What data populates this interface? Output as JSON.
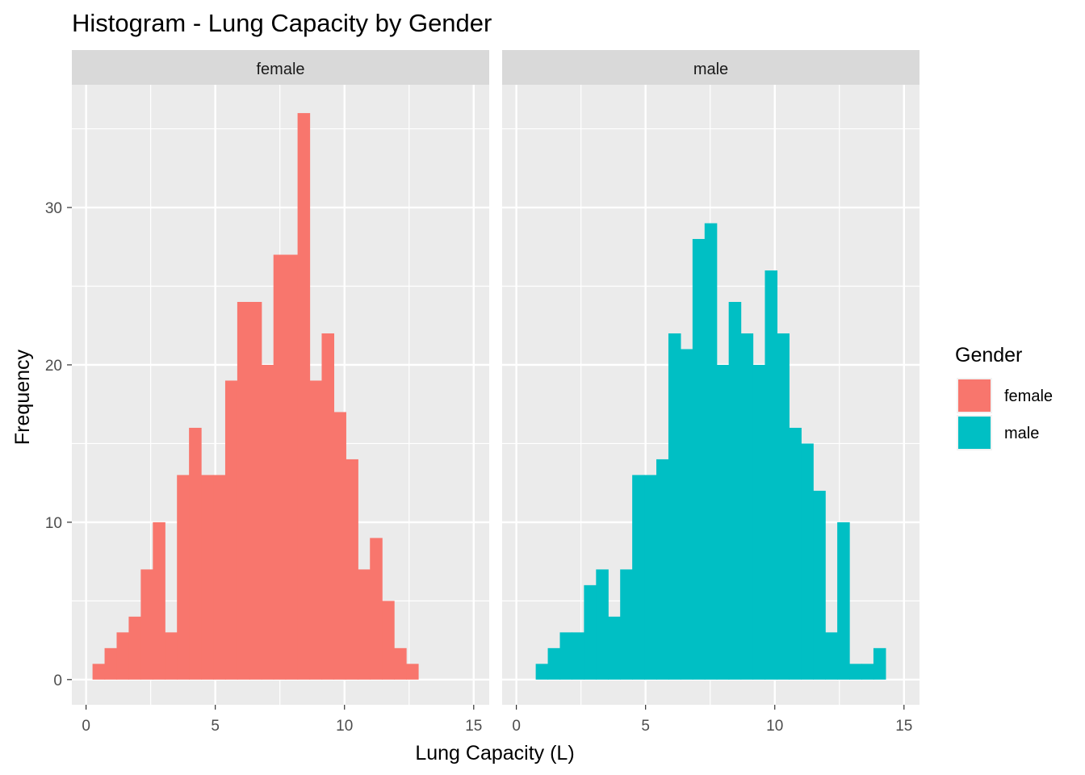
{
  "chart_data": {
    "type": "bar",
    "title": "Histogram - Lung Capacity by Gender",
    "xlabel": "Lung Capacity (L)",
    "ylabel": "Frequency",
    "xlim": [
      -0.55,
      15.6
    ],
    "ylim": [
      -1.6,
      37.8
    ],
    "x_ticks": [
      0,
      5,
      10,
      15
    ],
    "y_ticks": [
      0,
      10,
      20,
      30
    ],
    "grid": true,
    "bin_width": 0.4667,
    "legend": {
      "title": "Gender",
      "position": "right",
      "entries": [
        {
          "label": "female",
          "color": "#F8766D"
        },
        {
          "label": "male",
          "color": "#00BFC4"
        }
      ]
    },
    "panels": [
      {
        "label": "female",
        "color": "#F8766D",
        "bin_start": 0.25,
        "counts": [
          1,
          2,
          3,
          4,
          7,
          10,
          3,
          13,
          16,
          13,
          13,
          19,
          24,
          24,
          20,
          27,
          27,
          36,
          19,
          22,
          17,
          14,
          7,
          9,
          5,
          2,
          1
        ]
      },
      {
        "label": "male",
        "color": "#00BFC4",
        "bin_start": 0.75,
        "counts": [
          1,
          2,
          3,
          3,
          6,
          7,
          4,
          7,
          13,
          13,
          14,
          22,
          21,
          28,
          29,
          20,
          24,
          22,
          20,
          26,
          22,
          16,
          15,
          12,
          3,
          10,
          1,
          1,
          2
        ]
      }
    ]
  }
}
